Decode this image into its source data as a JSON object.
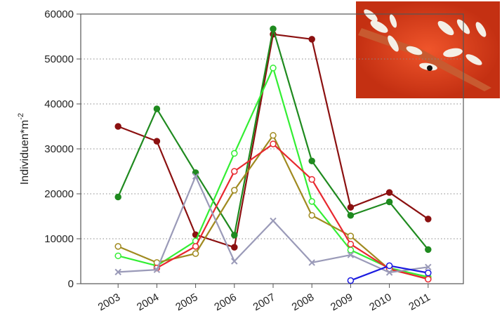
{
  "chart_data": {
    "type": "line",
    "ylabel": "Individuen*m",
    "ylabel_superscript": "-2",
    "categories": [
      "2003",
      "2004",
      "2005",
      "2006",
      "2007",
      "2008",
      "2009",
      "2010",
      "2011"
    ],
    "series": [
      {
        "color": "#8b1010",
        "marker": "filled",
        "values": [
          35000,
          31700,
          10900,
          8100,
          55500,
          54400,
          17000,
          20300,
          14400
        ]
      },
      {
        "color": "#1f8a1f",
        "marker": "filled",
        "values": [
          19300,
          38900,
          24700,
          10800,
          56700,
          27300,
          15200,
          18200,
          7600
        ]
      },
      {
        "color": "#33ee33",
        "marker": "open",
        "values": [
          6200,
          4000,
          9500,
          29000,
          48000,
          18300,
          7500,
          3500,
          1500
        ]
      },
      {
        "color": "#a08a20",
        "marker": "open",
        "values": [
          8300,
          4700,
          6700,
          20800,
          33000,
          15200,
          10600,
          3200,
          1100
        ]
      },
      {
        "color": "#e8282f",
        "marker": "open",
        "values": [
          null,
          3500,
          8300,
          25000,
          31100,
          23200,
          8800,
          3300,
          1000
        ]
      },
      {
        "color": "#9a9ab8",
        "marker": "x",
        "values": [
          2600,
          3100,
          23900,
          5000,
          14000,
          4700,
          6400,
          2500,
          3700
        ]
      },
      {
        "color": "#1a1ae0",
        "marker": "open",
        "values": [
          null,
          null,
          null,
          null,
          null,
          null,
          700,
          4000,
          2400
        ]
      }
    ],
    "ylim": [
      0,
      60000
    ],
    "yticks": [
      0,
      10000,
      20000,
      30000,
      40000,
      50000,
      60000
    ],
    "grid": true
  }
}
